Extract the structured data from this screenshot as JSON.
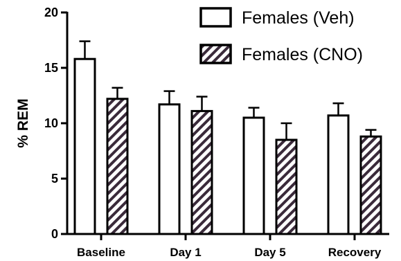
{
  "chart_data": {
    "type": "bar",
    "categories": [
      "Baseline",
      "Day 1",
      "Day 5",
      "Recovery"
    ],
    "series": [
      {
        "name": "Females (Veh)",
        "values": [
          15.8,
          11.7,
          10.5,
          10.7
        ],
        "errors": [
          1.6,
          1.2,
          0.9,
          1.1
        ],
        "fill": "white"
      },
      {
        "name": "Females (CNO)",
        "values": [
          12.2,
          11.1,
          8.5,
          8.8
        ],
        "errors": [
          1.0,
          1.3,
          1.5,
          0.6
        ],
        "fill": "hatch"
      }
    ],
    "xlabel": "",
    "ylabel": "% REM",
    "ylim": [
      0,
      20
    ],
    "yticks": [
      0,
      5,
      10,
      15,
      20
    ],
    "grid": false,
    "legend_position": "top-right",
    "colors": {
      "hatch": "#3a2a3a",
      "stroke": "#000000"
    }
  }
}
